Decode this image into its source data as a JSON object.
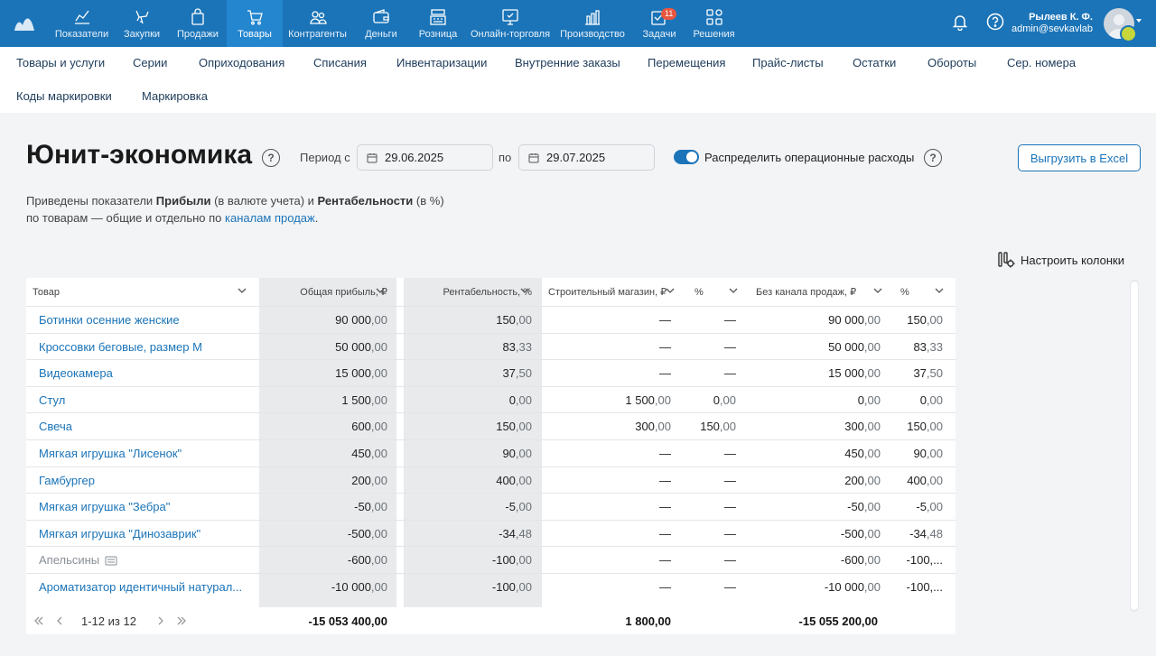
{
  "topbar": {
    "nav": [
      {
        "label": "Показатели",
        "icon": "chart-icon"
      },
      {
        "label": "Закупки",
        "icon": "basket-icon"
      },
      {
        "label": "Продажи",
        "icon": "bag-icon"
      },
      {
        "label": "Товары",
        "icon": "cart-icon"
      },
      {
        "label": "Контрагенты",
        "icon": "people-icon"
      },
      {
        "label": "Деньги",
        "icon": "wallet-icon"
      },
      {
        "label": "Розница",
        "icon": "register-icon"
      },
      {
        "label": "Онлайн-торговля",
        "icon": "online-icon"
      },
      {
        "label": "Производство",
        "icon": "factory-icon"
      },
      {
        "label": "Задачи",
        "icon": "tasks-icon",
        "badge": "11"
      },
      {
        "label": "Решения",
        "icon": "apps-icon"
      }
    ],
    "active_index": 3,
    "user_name": "Рылеев К. Ф.",
    "user_email": "admin@sevkavlab",
    "accent": "#1b74b8"
  },
  "subnav": {
    "items": [
      "Товары и услуги",
      "Серии",
      "Оприходования",
      "Списания",
      "Инвентаризации",
      "Внутренние заказы",
      "Перемещения",
      "Прайс-листы",
      "Остатки",
      "Обороты",
      "Сер. номера",
      "Коды маркировки",
      "Маркировка"
    ]
  },
  "page": {
    "title": "Юнит-экономика",
    "period_from_label": "Период с",
    "date_from": "29.06.2025",
    "period_to_label": "по",
    "date_to": "29.07.2025",
    "distribute_label": "Распределить операционные расходы",
    "distribute_on": true,
    "export_button": "Выгрузить в Excel",
    "desc_1": "Приведены показатели ",
    "desc_profit": "Прибыли",
    "desc_2": " (в валюте учета) и ",
    "desc_rent": "Рентабельности",
    "desc_3": " (в %)",
    "desc_4": "по товарам — общие и отдельно по ",
    "desc_link": "каналам продаж",
    "desc_5": ".",
    "columns_button": "Настроить колонки"
  },
  "table": {
    "headers": [
      "Товар",
      "Общая прибыль, ₽",
      "Рентабельность, %",
      "Строительный магазин, ₽",
      "%",
      "Без канала продаж, ₽",
      "%"
    ],
    "rows": [
      {
        "name": "Ботинки осенние женские",
        "muted": false,
        "c": [
          [
            "90 000",
            ",00"
          ],
          [
            "150",
            ",00"
          ],
          [
            "—",
            ""
          ],
          [
            "—",
            ""
          ],
          [
            "90 000",
            ",00"
          ],
          [
            "150",
            ",00"
          ]
        ]
      },
      {
        "name": "Кроссовки беговые, размер M",
        "muted": false,
        "c": [
          [
            "50 000",
            ",00"
          ],
          [
            "83",
            ",33"
          ],
          [
            "—",
            ""
          ],
          [
            "—",
            ""
          ],
          [
            "50 000",
            ",00"
          ],
          [
            "83",
            ",33"
          ]
        ]
      },
      {
        "name": "Видеокамера",
        "muted": false,
        "c": [
          [
            "15 000",
            ",00"
          ],
          [
            "37",
            ",50"
          ],
          [
            "—",
            ""
          ],
          [
            "—",
            ""
          ],
          [
            "15 000",
            ",00"
          ],
          [
            "37",
            ",50"
          ]
        ]
      },
      {
        "name": "Стул",
        "muted": false,
        "c": [
          [
            "1 500",
            ",00"
          ],
          [
            "0",
            ",00"
          ],
          [
            "1 500",
            ",00"
          ],
          [
            "0",
            ",00"
          ],
          [
            "0",
            ",00"
          ],
          [
            "0",
            ",00"
          ]
        ]
      },
      {
        "name": "Свеча",
        "muted": false,
        "c": [
          [
            "600",
            ",00"
          ],
          [
            "150",
            ",00"
          ],
          [
            "300",
            ",00"
          ],
          [
            "150",
            ",00"
          ],
          [
            "300",
            ",00"
          ],
          [
            "150",
            ",00"
          ]
        ]
      },
      {
        "name": "Мягкая игрушка \"Лисенок\"",
        "muted": false,
        "c": [
          [
            "450",
            ",00"
          ],
          [
            "90",
            ",00"
          ],
          [
            "—",
            ""
          ],
          [
            "—",
            ""
          ],
          [
            "450",
            ",00"
          ],
          [
            "90",
            ",00"
          ]
        ]
      },
      {
        "name": "Гамбургер",
        "muted": false,
        "c": [
          [
            "200",
            ",00"
          ],
          [
            "400",
            ",00"
          ],
          [
            "—",
            ""
          ],
          [
            "—",
            ""
          ],
          [
            "200",
            ",00"
          ],
          [
            "400",
            ",00"
          ]
        ]
      },
      {
        "name": "Мягкая игрушка \"Зебра\"",
        "muted": false,
        "c": [
          [
            "-50",
            ",00"
          ],
          [
            "-5",
            ",00"
          ],
          [
            "—",
            ""
          ],
          [
            "—",
            ""
          ],
          [
            "-50",
            ",00"
          ],
          [
            "-5",
            ",00"
          ]
        ]
      },
      {
        "name": "Мягкая игрушка \"Динозаврик\"",
        "muted": false,
        "c": [
          [
            "-500",
            ",00"
          ],
          [
            "-34",
            ",48"
          ],
          [
            "—",
            ""
          ],
          [
            "—",
            ""
          ],
          [
            "-500",
            ",00"
          ],
          [
            "-34",
            ",48"
          ]
        ]
      },
      {
        "name": "Апельсины",
        "muted": true,
        "c": [
          [
            "-600",
            ",00"
          ],
          [
            "-100",
            ",00"
          ],
          [
            "—",
            ""
          ],
          [
            "—",
            ""
          ],
          [
            "-600",
            ",00"
          ],
          [
            "-100,...",
            ""
          ]
        ]
      },
      {
        "name": "Ароматизатор идентичный натурал...",
        "muted": false,
        "c": [
          [
            "-10 000",
            ",00"
          ],
          [
            "-100",
            ",00"
          ],
          [
            "—",
            ""
          ],
          [
            "—",
            ""
          ],
          [
            "-10 000",
            ",00"
          ],
          [
            "-100,...",
            ""
          ]
        ]
      }
    ],
    "pagination": "1-12 из 12",
    "totals": [
      "-15 053 400,00",
      "1 800,00",
      "-15 055 200,00"
    ]
  }
}
